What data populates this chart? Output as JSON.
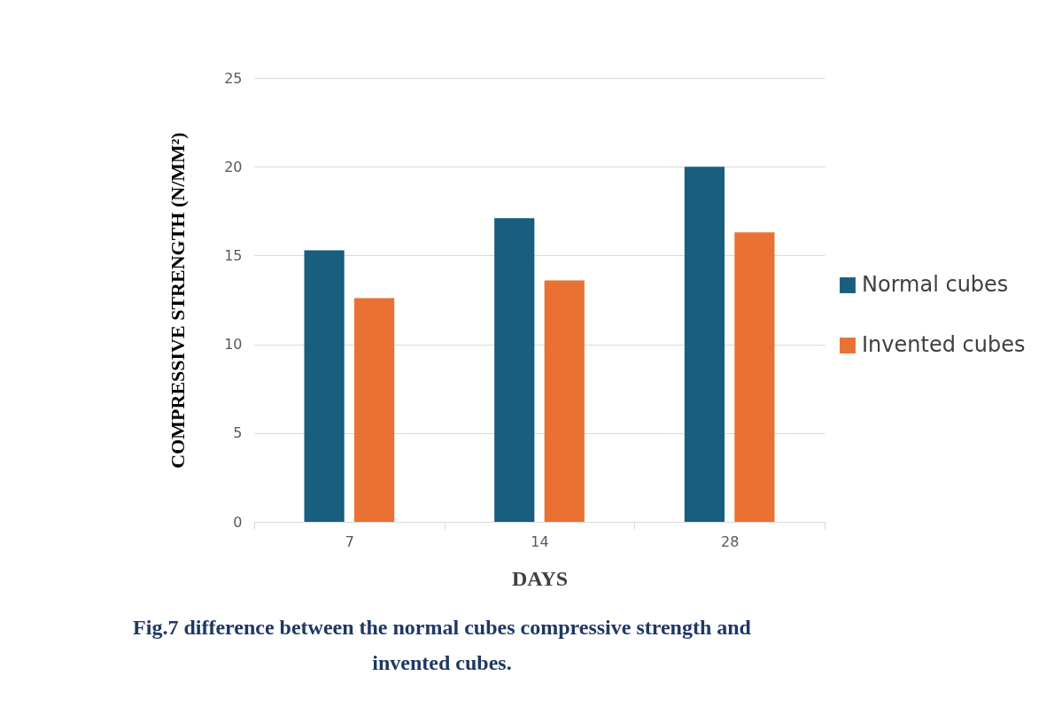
{
  "chart_data": {
    "type": "bar",
    "xlabel": "DAYS",
    "ylabel": "COMPRESSIVE STRENGTH (N/MM²)",
    "categories": [
      "7",
      "14",
      "28"
    ],
    "series": [
      {
        "name": "Normal cubes",
        "color": "#175e7f",
        "values": [
          15.3,
          17.1,
          20.0
        ]
      },
      {
        "name": "Invented cubes",
        "color": "#e97132",
        "values": [
          12.6,
          13.6,
          16.3
        ]
      }
    ],
    "ylim": [
      0,
      25
    ],
    "yticks": [
      0,
      5,
      10,
      15,
      20,
      25
    ],
    "grid": "y",
    "legend": "right",
    "annotations": [
      "Fig.7 difference between the normal cubes compressive strength and invented cubes."
    ]
  }
}
